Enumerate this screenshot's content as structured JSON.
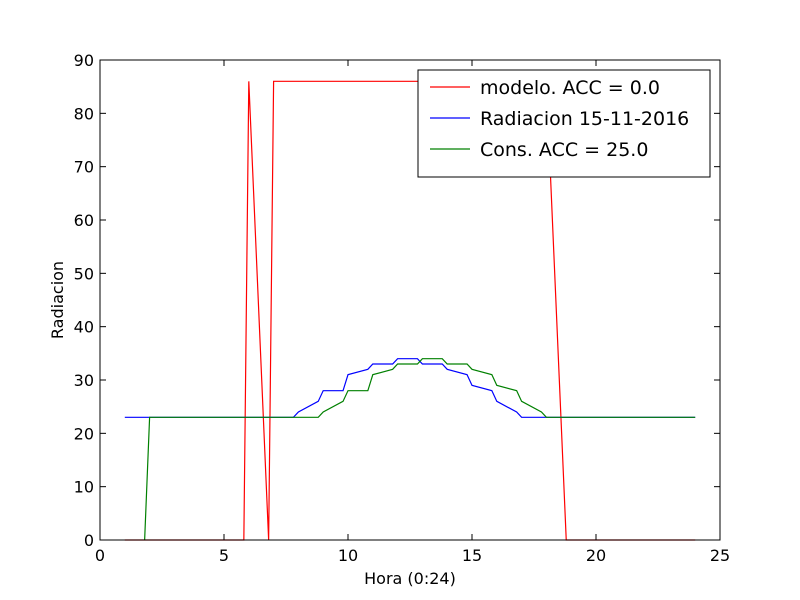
{
  "chart_data": {
    "type": "line",
    "xlabel": "Hora (0:24)",
    "ylabel": "Radiacion",
    "xlim": [
      0,
      25
    ],
    "ylim": [
      0,
      90
    ],
    "xticks": [
      0,
      5,
      10,
      15,
      20,
      25
    ],
    "yticks": [
      0,
      10,
      20,
      30,
      40,
      50,
      60,
      70,
      80,
      90
    ],
    "grid": false,
    "legend_position": "top-right",
    "series": [
      {
        "name": "modelo. ACC = 0.0",
        "color": "#ff0000",
        "points": [
          [
            1,
            0
          ],
          [
            5.8,
            0
          ],
          [
            6.0,
            86
          ],
          [
            6.8,
            0
          ],
          [
            7.0,
            86
          ],
          [
            18.0,
            86
          ],
          [
            18.8,
            0
          ],
          [
            24,
            0
          ]
        ]
      },
      {
        "name": "Radiacion 15-11-2016",
        "color": "#0000ff",
        "points": [
          [
            1,
            23
          ],
          [
            7.8,
            23
          ],
          [
            8.0,
            24
          ],
          [
            8.8,
            26
          ],
          [
            9.0,
            28
          ],
          [
            9.8,
            28
          ],
          [
            10.0,
            31
          ],
          [
            10.8,
            32
          ],
          [
            11.0,
            33
          ],
          [
            11.8,
            33
          ],
          [
            12.0,
            34
          ],
          [
            12.8,
            34
          ],
          [
            13.0,
            33
          ],
          [
            13.8,
            33
          ],
          [
            14.0,
            32
          ],
          [
            14.8,
            31
          ],
          [
            15.0,
            29
          ],
          [
            15.8,
            28
          ],
          [
            16.0,
            26
          ],
          [
            16.8,
            24
          ],
          [
            17.0,
            23
          ],
          [
            24,
            23
          ]
        ]
      },
      {
        "name": "Cons. ACC = 25.0",
        "color": "#008000",
        "points": [
          [
            1.8,
            0
          ],
          [
            2.0,
            23
          ],
          [
            8.8,
            23
          ],
          [
            9.0,
            24
          ],
          [
            9.8,
            26
          ],
          [
            10.0,
            28
          ],
          [
            10.8,
            28
          ],
          [
            11.0,
            31
          ],
          [
            11.8,
            32
          ],
          [
            12.0,
            33
          ],
          [
            12.8,
            33
          ],
          [
            13.0,
            34
          ],
          [
            13.8,
            34
          ],
          [
            14.0,
            33
          ],
          [
            14.8,
            33
          ],
          [
            15.0,
            32
          ],
          [
            15.8,
            31
          ],
          [
            16.0,
            29
          ],
          [
            16.8,
            28
          ],
          [
            17.0,
            26
          ],
          [
            17.8,
            24
          ],
          [
            18.0,
            23
          ],
          [
            24,
            23
          ]
        ]
      }
    ]
  }
}
